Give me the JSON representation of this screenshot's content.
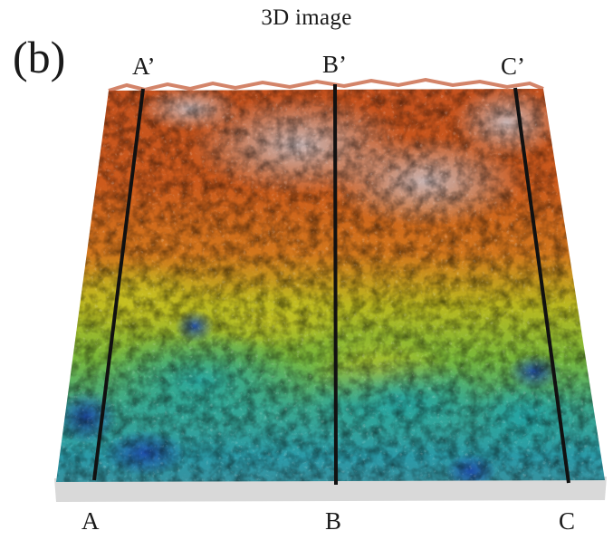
{
  "title": "3D image",
  "panel_label": "(b)",
  "profile_lines": [
    {
      "start": "A",
      "end": "A’"
    },
    {
      "start": "B",
      "end": "B’"
    },
    {
      "start": "C",
      "end": "C’"
    }
  ],
  "colors": {
    "peak": "#b9a9a9",
    "high": "#c9501c",
    "mid_high": "#d06a1c",
    "mid": "#b9b81f",
    "mid_low": "#6fb63a",
    "low": "#27a7a2",
    "valley": "#1f4fae",
    "base": "#dadada",
    "line": "#111111"
  }
}
